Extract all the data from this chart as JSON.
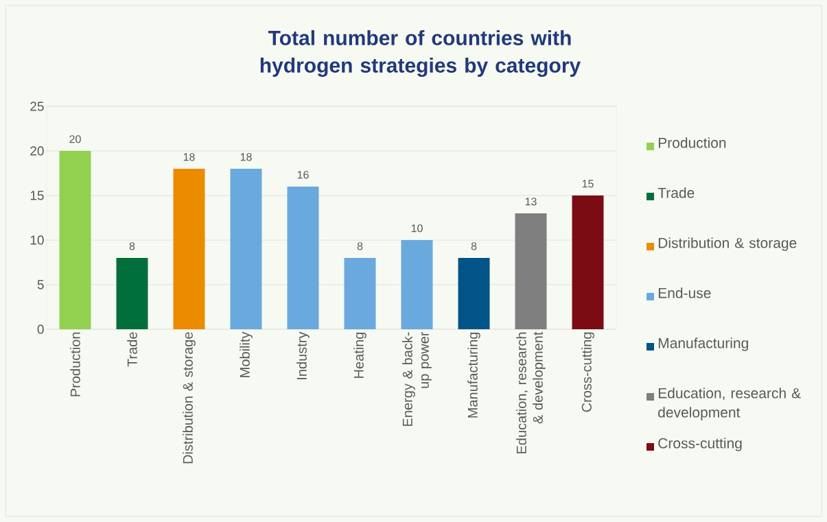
{
  "chart_data": {
    "type": "bar",
    "title": "Total number of countries with hydrogen strategies by category",
    "categories": [
      "Production",
      "Trade",
      "Distribution & storage",
      "Mobility",
      "Industry",
      "Heating",
      "Energy & back-up power",
      "Manufacturing",
      "Education, research & development",
      "Cross-cutting"
    ],
    "series": [
      {
        "name": "Production",
        "color": "#92d050",
        "values": [
          20,
          null,
          null,
          null,
          null,
          null,
          null,
          null,
          null,
          null
        ]
      },
      {
        "name": "Trade",
        "color": "#006f3c",
        "values": [
          null,
          8,
          null,
          null,
          null,
          null,
          null,
          null,
          null,
          null
        ]
      },
      {
        "name": "Distribution & storage",
        "color": "#ed8b00",
        "values": [
          null,
          null,
          18,
          null,
          null,
          null,
          null,
          null,
          null,
          null
        ]
      },
      {
        "name": "End-use",
        "color": "#6aa9dd",
        "values": [
          null,
          null,
          null,
          18,
          16,
          8,
          10,
          null,
          null,
          null
        ]
      },
      {
        "name": "Manufacturing",
        "color": "#005487",
        "values": [
          null,
          null,
          null,
          null,
          null,
          null,
          null,
          8,
          null,
          null
        ]
      },
      {
        "name": "Education, research & development",
        "color": "#7f7f7f",
        "values": [
          null,
          null,
          null,
          null,
          null,
          null,
          null,
          null,
          13,
          null
        ]
      },
      {
        "name": "Cross-cutting",
        "color": "#7b0c14",
        "values": [
          null,
          null,
          null,
          null,
          null,
          null,
          null,
          null,
          null,
          15
        ]
      }
    ],
    "ylim": [
      0,
      25
    ],
    "yticks": [
      0,
      5,
      10,
      15,
      20,
      25
    ],
    "grid": "y",
    "legend": "right",
    "data_labels": true
  }
}
